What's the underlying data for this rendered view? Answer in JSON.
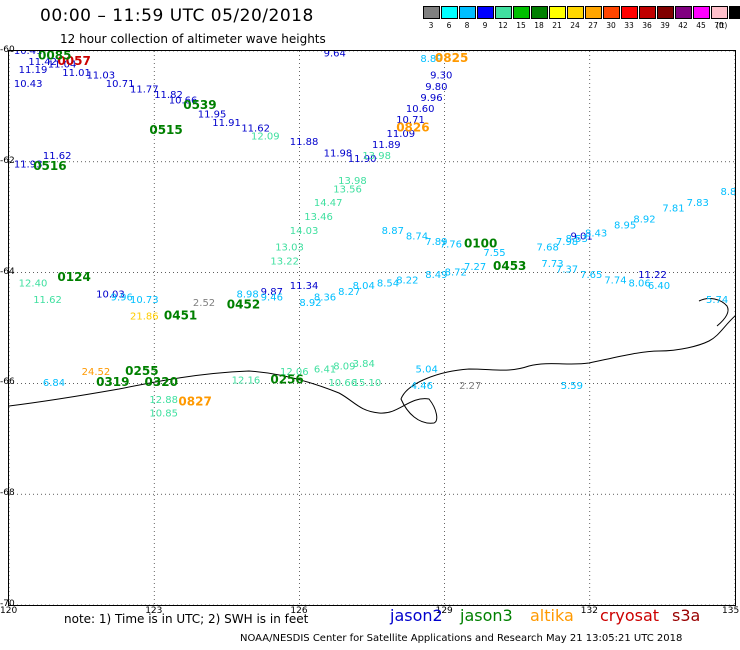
{
  "header": {
    "title": "00:00 – 11:59 UTC 05/20/2018",
    "subtitle": "12 hour collection of altimeter wave heights"
  },
  "colorbar": {
    "unit": "(ft)",
    "items": [
      {
        "label": "3",
        "color": "#808080"
      },
      {
        "label": "6",
        "color": "#00ffff"
      },
      {
        "label": "8",
        "color": "#00bfff"
      },
      {
        "label": "9",
        "color": "#0000ff"
      },
      {
        "label": "12",
        "color": "#40e0a0"
      },
      {
        "label": "15",
        "color": "#00c000"
      },
      {
        "label": "18",
        "color": "#008000"
      },
      {
        "label": "21",
        "color": "#ffff00"
      },
      {
        "label": "24",
        "color": "#ffd700"
      },
      {
        "label": "27",
        "color": "#ffa500"
      },
      {
        "label": "30",
        "color": "#ff4500"
      },
      {
        "label": "33",
        "color": "#ff0000"
      },
      {
        "label": "36",
        "color": "#c00000"
      },
      {
        "label": "39",
        "color": "#800000"
      },
      {
        "label": "42",
        "color": "#800080"
      },
      {
        "label": "45",
        "color": "#ff00ff"
      },
      {
        "label": "70",
        "color": "#ffc0cb"
      },
      {
        "label": "",
        "color": "#000000"
      }
    ]
  },
  "axes": {
    "x_ticks": [
      "120",
      "123",
      "126",
      "129",
      "132",
      "135"
    ],
    "y_ticks": [
      "-60",
      "-62",
      "-64",
      "-66",
      "-68",
      "-70"
    ]
  },
  "footer": {
    "note": "note:  1) Time is in UTC;  2) SWH is in feet",
    "satellites": [
      {
        "name": "jason2",
        "color": "#0000cc"
      },
      {
        "name": "jason3",
        "color": "#008000"
      },
      {
        "name": "altika",
        "color": "#ff9900"
      },
      {
        "name": "cryosat",
        "color": "#cc0000"
      },
      {
        "name": "s3a",
        "color": "#990000"
      }
    ],
    "credit": "NOAA/NESDIS Center for Satellite Applications and Research    May 21 13:05:21 UTC 2018"
  },
  "map_labels": [
    {
      "text": "10.41",
      "lon": 120.1,
      "lat": -60.05,
      "color": "#0000cc"
    },
    {
      "text": "11.19",
      "lon": 120.2,
      "lat": -60.4,
      "color": "#0000cc"
    },
    {
      "text": "11.42",
      "lon": 120.4,
      "lat": -60.25,
      "color": "#0000cc"
    },
    {
      "text": "11.04",
      "lon": 120.8,
      "lat": -60.3,
      "color": "#0000cc"
    },
    {
      "text": "10.43",
      "lon": 120.1,
      "lat": -60.65,
      "color": "#0000cc"
    },
    {
      "text": "11.01",
      "lon": 121.1,
      "lat": -60.45,
      "color": "#0000cc"
    },
    {
      "text": "11.03",
      "lon": 121.6,
      "lat": -60.5,
      "color": "#0000cc"
    },
    {
      "text": "10.71",
      "lon": 122.0,
      "lat": -60.65,
      "color": "#0000cc"
    },
    {
      "text": "11.77",
      "lon": 122.5,
      "lat": -60.75,
      "color": "#0000cc"
    },
    {
      "text": "11.82",
      "lon": 123.0,
      "lat": -60.85,
      "color": "#0000cc"
    },
    {
      "text": "10.66",
      "lon": 123.3,
      "lat": -60.95,
      "color": "#0000cc"
    },
    {
      "text": "11.95",
      "lon": 123.9,
      "lat": -61.2,
      "color": "#0000cc"
    },
    {
      "text": "11.91",
      "lon": 124.2,
      "lat": -61.35,
      "color": "#0000cc"
    },
    {
      "text": "11.62",
      "lon": 124.8,
      "lat": -61.45,
      "color": "#0000cc"
    },
    {
      "text": "11.88",
      "lon": 125.8,
      "lat": -61.7,
      "color": "#0000cc"
    },
    {
      "text": "11.98",
      "lon": 126.5,
      "lat": -61.9,
      "color": "#0000cc"
    },
    {
      "text": "11.90",
      "lon": 127.0,
      "lat": -62.0,
      "color": "#0000cc"
    },
    {
      "text": "11.89",
      "lon": 127.5,
      "lat": -61.75,
      "color": "#0000cc"
    },
    {
      "text": "11.09",
      "lon": 127.8,
      "lat": -61.55,
      "color": "#0000cc"
    },
    {
      "text": "10.71",
      "lon": 128.0,
      "lat": -61.3,
      "color": "#0000cc"
    },
    {
      "text": "10.60",
      "lon": 128.2,
      "lat": -61.1,
      "color": "#0000cc"
    },
    {
      "text": "9.96",
      "lon": 128.5,
      "lat": -60.9,
      "color": "#0000cc"
    },
    {
      "text": "9.80",
      "lon": 128.6,
      "lat": -60.7,
      "color": "#0000cc"
    },
    {
      "text": "9.30",
      "lon": 128.7,
      "lat": -60.5,
      "color": "#0000cc"
    },
    {
      "text": "8.89",
      "lon": 128.5,
      "lat": -60.2,
      "color": "#00bfff"
    },
    {
      "text": "9.64",
      "lon": 126.5,
      "lat": -60.1,
      "color": "#0000cc"
    },
    {
      "text": "11.93",
      "lon": 120.1,
      "lat": -62.1,
      "color": "#0000cc"
    },
    {
      "text": "11.62",
      "lon": 120.7,
      "lat": -61.95,
      "color": "#0000cc"
    },
    {
      "text": "9.87",
      "lon": 125.2,
      "lat": -64.4,
      "color": "#0000cc"
    },
    {
      "text": "10.03",
      "lon": 121.8,
      "lat": -64.45,
      "color": "#0000cc"
    },
    {
      "text": "11.34",
      "lon": 125.8,
      "lat": -64.3,
      "color": "#0000cc"
    },
    {
      "text": "11.22",
      "lon": 133.0,
      "lat": -64.1,
      "color": "#0000cc"
    },
    {
      "text": "9.01",
      "lon": 131.6,
      "lat": -63.4,
      "color": "#0000cc"
    },
    {
      "text": "8.74",
      "lon": 128.2,
      "lat": -63.4,
      "color": "#00bfff"
    },
    {
      "text": "7.89",
      "lon": 128.6,
      "lat": -63.5,
      "color": "#00bfff"
    },
    {
      "text": "7.76",
      "lon": 128.9,
      "lat": -63.55,
      "color": "#00bfff"
    },
    {
      "text": "8.87",
      "lon": 127.7,
      "lat": -63.3,
      "color": "#00bfff"
    },
    {
      "text": "8.72",
      "lon": 129.0,
      "lat": -64.05,
      "color": "#00bfff"
    },
    {
      "text": "8.49",
      "lon": 128.6,
      "lat": -64.1,
      "color": "#00bfff"
    },
    {
      "text": "8.22",
      "lon": 128.0,
      "lat": -64.2,
      "color": "#00bfff"
    },
    {
      "text": "8.54",
      "lon": 127.6,
      "lat": -64.25,
      "color": "#00bfff"
    },
    {
      "text": "8.04",
      "lon": 127.1,
      "lat": -64.3,
      "color": "#00bfff"
    },
    {
      "text": "8.27",
      "lon": 126.8,
      "lat": -64.4,
      "color": "#00bfff"
    },
    {
      "text": "8.36",
      "lon": 126.3,
      "lat": -64.5,
      "color": "#00bfff"
    },
    {
      "text": "8.92",
      "lon": 126.0,
      "lat": -64.6,
      "color": "#00bfff"
    },
    {
      "text": "7.27",
      "lon": 129.4,
      "lat": -63.95,
      "color": "#00bfff"
    },
    {
      "text": "7.73",
      "lon": 131.0,
      "lat": -63.9,
      "color": "#00bfff"
    },
    {
      "text": "7.37",
      "lon": 131.3,
      "lat": -64.0,
      "color": "#00bfff"
    },
    {
      "text": "7.65",
      "lon": 131.8,
      "lat": -64.1,
      "color": "#00bfff"
    },
    {
      "text": "7.74",
      "lon": 132.3,
      "lat": -64.2,
      "color": "#00bfff"
    },
    {
      "text": "8.06",
      "lon": 132.8,
      "lat": -64.25,
      "color": "#00bfff"
    },
    {
      "text": "6.40",
      "lon": 133.2,
      "lat": -64.3,
      "color": "#00bfff"
    },
    {
      "text": "5.74",
      "lon": 134.4,
      "lat": -64.55,
      "color": "#00bfff"
    },
    {
      "text": "7.68",
      "lon": 130.9,
      "lat": -63.6,
      "color": "#00bfff"
    },
    {
      "text": "7.98",
      "lon": 131.3,
      "lat": -63.5,
      "color": "#00bfff"
    },
    {
      "text": "8.53",
      "lon": 131.5,
      "lat": -63.45,
      "color": "#00bfff"
    },
    {
      "text": "8.43",
      "lon": 131.9,
      "lat": -63.35,
      "color": "#00bfff"
    },
    {
      "text": "8.95",
      "lon": 132.5,
      "lat": -63.2,
      "color": "#00bfff"
    },
    {
      "text": "8.92",
      "lon": 132.9,
      "lat": -63.1,
      "color": "#00bfff"
    },
    {
      "text": "7.81",
      "lon": 133.5,
      "lat": -62.9,
      "color": "#00bfff"
    },
    {
      "text": "7.83",
      "lon": 134.0,
      "lat": -62.8,
      "color": "#00bfff"
    },
    {
      "text": "8.82",
      "lon": 134.7,
      "lat": -62.6,
      "color": "#00bfff"
    },
    {
      "text": "7.55",
      "lon": 129.8,
      "lat": -63.7,
      "color": "#00bfff"
    },
    {
      "text": "8.98",
      "lon": 124.7,
      "lat": -64.45,
      "color": "#00bfff"
    },
    {
      "text": "9.46",
      "lon": 125.2,
      "lat": -64.5,
      "color": "#00bfff"
    },
    {
      "text": "9.96",
      "lon": 122.1,
      "lat": -64.5,
      "color": "#00bfff"
    },
    {
      "text": "10.73",
      "lon": 122.5,
      "lat": -64.55,
      "color": "#00bfff"
    },
    {
      "text": "5.04",
      "lon": 128.4,
      "lat": -65.8,
      "color": "#00bfff"
    },
    {
      "text": "4.46",
      "lon": 128.3,
      "lat": -66.1,
      "color": "#00bfff"
    },
    {
      "text": "5.59",
      "lon": 131.4,
      "lat": -66.1,
      "color": "#00bfff"
    },
    {
      "text": "6.84",
      "lon": 120.7,
      "lat": -66.05,
      "color": "#00bfff"
    },
    {
      "text": "2.52",
      "lon": 123.8,
      "lat": -64.6,
      "color": "#808080"
    },
    {
      "text": "2.27",
      "lon": 129.3,
      "lat": -66.1,
      "color": "#808080"
    },
    {
      "text": "13.56",
      "lon": 126.7,
      "lat": -62.55,
      "color": "#40e0a0"
    },
    {
      "text": "13.98",
      "lon": 126.8,
      "lat": -62.4,
      "color": "#40e0a0"
    },
    {
      "text": "14.47",
      "lon": 126.3,
      "lat": -62.8,
      "color": "#40e0a0"
    },
    {
      "text": "13.46",
      "lon": 126.1,
      "lat": -63.05,
      "color": "#40e0a0"
    },
    {
      "text": "14.03",
      "lon": 125.8,
      "lat": -63.3,
      "color": "#40e0a0"
    },
    {
      "text": "13.03",
      "lon": 125.5,
      "lat": -63.6,
      "color": "#40e0a0"
    },
    {
      "text": "13.22",
      "lon": 125.4,
      "lat": -63.85,
      "color": "#40e0a0"
    },
    {
      "text": "12.09",
      "lon": 125.0,
      "lat": -61.6,
      "color": "#40e0a0"
    },
    {
      "text": "13.98",
      "lon": 127.3,
      "lat": -61.95,
      "color": "#40e0a0"
    },
    {
      "text": "12.16",
      "lon": 124.6,
      "lat": -66.0,
      "color": "#40e0a0"
    },
    {
      "text": "12.06",
      "lon": 125.6,
      "lat": -65.85,
      "color": "#40e0a0"
    },
    {
      "text": "6.41",
      "lon": 126.3,
      "lat": -65.8,
      "color": "#40e0a0"
    },
    {
      "text": "8.09",
      "lon": 126.7,
      "lat": -65.75,
      "color": "#40e0a0"
    },
    {
      "text": "3.84",
      "lon": 127.1,
      "lat": -65.7,
      "color": "#40e0a0"
    },
    {
      "text": "10.66",
      "lon": 126.6,
      "lat": -66.05,
      "color": "#40e0a0"
    },
    {
      "text": "15.10",
      "lon": 127.1,
      "lat": -66.05,
      "color": "#40e0a0"
    },
    {
      "text": "12.88",
      "lon": 122.9,
      "lat": -66.35,
      "color": "#40e0a0"
    },
    {
      "text": "10.85",
      "lon": 122.9,
      "lat": -66.6,
      "color": "#40e0a0"
    },
    {
      "text": "12.40",
      "lon": 120.2,
      "lat": -64.25,
      "color": "#40e0a0"
    },
    {
      "text": "11.62",
      "lon": 120.5,
      "lat": -64.55,
      "color": "#40e0a0"
    },
    {
      "text": "24.52",
      "lon": 121.5,
      "lat": -65.85,
      "color": "#ff9900"
    },
    {
      "text": "21.86",
      "lon": 122.5,
      "lat": -64.85,
      "color": "#ffcc00"
    },
    {
      "text": "0825",
      "lon": 128.8,
      "lat": -60.2,
      "color": "#ff9900",
      "bold": true
    },
    {
      "text": "0826",
      "lon": 128.0,
      "lat": -61.45,
      "color": "#ff9900",
      "bold": true
    },
    {
      "text": "0827",
      "lon": 123.5,
      "lat": -66.4,
      "color": "#ff9900",
      "bold": true
    },
    {
      "text": "0057",
      "lon": 121.0,
      "lat": -60.25,
      "color": "#cc0000",
      "bold": true
    },
    {
      "text": "0085",
      "lon": 120.6,
      "lat": -60.15,
      "color": "#008000",
      "bold": true
    },
    {
      "text": "0539",
      "lon": 123.6,
      "lat": -61.05,
      "color": "#008000",
      "bold": true
    },
    {
      "text": "0515",
      "lon": 122.9,
      "lat": -61.5,
      "color": "#008000",
      "bold": true
    },
    {
      "text": "0516",
      "lon": 120.5,
      "lat": -62.15,
      "color": "#008000",
      "bold": true
    },
    {
      "text": "0124",
      "lon": 121.0,
      "lat": -64.15,
      "color": "#008000",
      "bold": true
    },
    {
      "text": "0451",
      "lon": 123.2,
      "lat": -64.85,
      "color": "#008000",
      "bold": true
    },
    {
      "text": "0452",
      "lon": 124.5,
      "lat": -64.65,
      "color": "#008000",
      "bold": true
    },
    {
      "text": "0100",
      "lon": 129.4,
      "lat": -63.55,
      "color": "#008000",
      "bold": true
    },
    {
      "text": "0453",
      "lon": 130.0,
      "lat": -63.95,
      "color": "#008000",
      "bold": true
    },
    {
      "text": "0255",
      "lon": 122.4,
      "lat": -65.85,
      "color": "#008000",
      "bold": true
    },
    {
      "text": "0319",
      "lon": 121.8,
      "lat": -66.05,
      "color": "#008000",
      "bold": true
    },
    {
      "text": "0320",
      "lon": 122.8,
      "lat": -66.05,
      "color": "#008000",
      "bold": true
    },
    {
      "text": "0256",
      "lon": 125.4,
      "lat": -66.0,
      "color": "#008000",
      "bold": true
    }
  ]
}
